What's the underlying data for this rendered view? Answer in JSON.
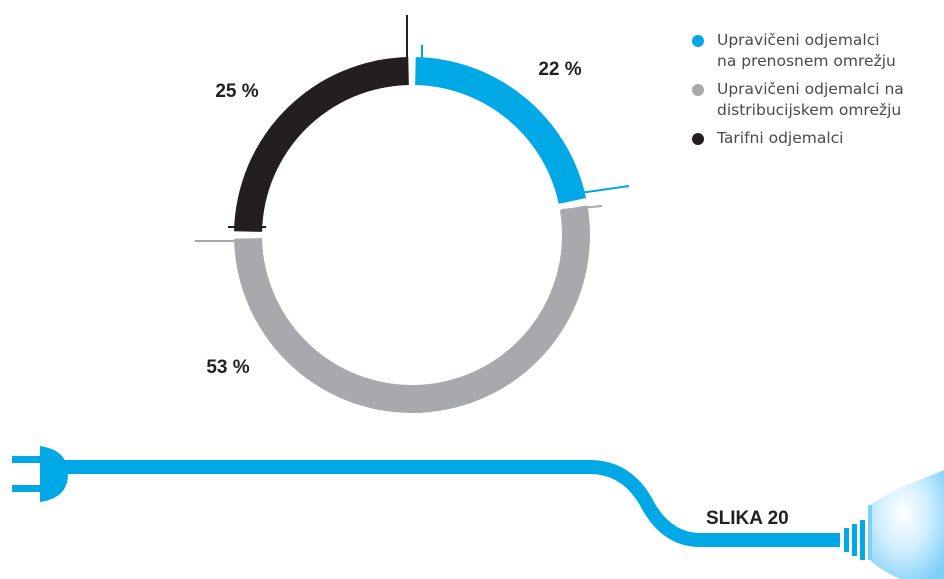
{
  "chart_data": {
    "type": "donut",
    "categories": [
      "Upravičeni odjemalci\nna prenosnem omrežju",
      "Upravičeni odjemalci na\ndistribucijskem omrežju",
      "Tarifni odjemalci"
    ],
    "values": [
      22,
      53,
      25
    ],
    "value_labels": [
      "22 %",
      "53 %",
      "25 %"
    ],
    "colors": [
      "#00a9e6",
      "#a7a9ac",
      "#231f20"
    ],
    "caption": "SLIKA 20"
  }
}
